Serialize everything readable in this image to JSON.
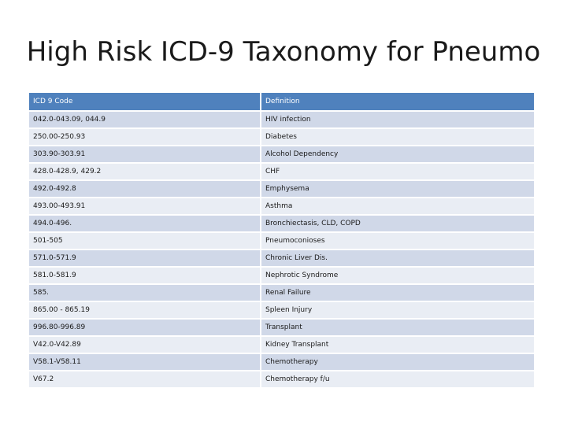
{
  "title": "High Risk ICD-9 Taxonomy for Pneumo",
  "table": {
    "headers": [
      "ICD 9 Code",
      "Definition"
    ],
    "rows": [
      [
        "042.0-043.09, 044.9",
        "HIV infection"
      ],
      [
        "250.00-250.93",
        "Diabetes"
      ],
      [
        "303.90-303.91",
        "Alcohol Dependency"
      ],
      [
        "428.0-428.9, 429.2",
        "CHF"
      ],
      [
        "492.0-492.8",
        "Emphysema"
      ],
      [
        "493.00-493.91",
        "Asthma"
      ],
      [
        "494.0-496.",
        "Bronchiectasis, CLD, COPD"
      ],
      [
        "501-505",
        "Pneumoconioses"
      ],
      [
        "571.0-571.9",
        "Chronic Liver Dis."
      ],
      [
        "581.0-581.9",
        "Nephrotic Syndrome"
      ],
      [
        "585.",
        "Renal Failure"
      ],
      [
        "865.00 - 865.19",
        "Spleen Injury"
      ],
      [
        "996.80-996.89",
        "Transplant"
      ],
      [
        "V42.0-V42.89",
        "Kidney Transplant"
      ],
      [
        "V58.1-V58.11",
        "Chemotherapy"
      ],
      [
        "V67.2",
        "Chemotherapy f/u"
      ]
    ]
  },
  "colors": {
    "header": "#4f81bd",
    "row_odd": "#d0d8e8",
    "row_even": "#e9edf4"
  }
}
